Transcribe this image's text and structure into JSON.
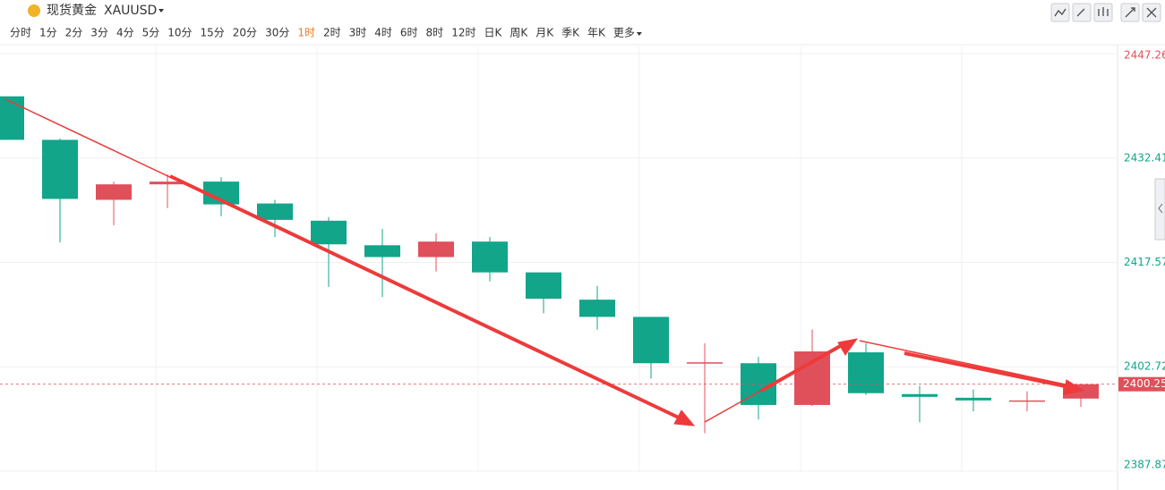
{
  "toolbar": {
    "symbol_name": "现货黄金",
    "symbol": "XAUUSD",
    "intervals": [
      "分时",
      "1分",
      "2分",
      "3分",
      "4分",
      "5分",
      "10分",
      "15分",
      "20分",
      "30分",
      "1时",
      "2时",
      "3时",
      "4时",
      "6时",
      "8时",
      "12时",
      "日K",
      "周K",
      "月K",
      "季K",
      "年K"
    ],
    "more": "更多",
    "active_interval": 10
  },
  "chart_data": {
    "type": "candlestick",
    "up_color": "#e0505a",
    "down_color": "#12a58a",
    "open": [
      2441.19,
      2435.0,
      2426.47,
      2428.67,
      2429.06,
      2425.95,
      2423.5,
      2420.01,
      2418.33,
      2420.53,
      2416.15,
      2412.27,
      2409.82,
      2403.23,
      2403.23,
      2397.29,
      2404.78,
      2398.84,
      2398.32,
      2397.81,
      2398.2
    ],
    "high": [
      2441.19,
      2435.2,
      2429.06,
      2430.09,
      2429.7,
      2426.47,
      2424.02,
      2422.34,
      2421.7,
      2421.17,
      2416.15,
      2414.21,
      2409.82,
      2406.07,
      2404.14,
      2408.01,
      2406.07,
      2400.01,
      2399.49,
      2399.23,
      2400.25
    ],
    "low": [
      2435.0,
      2420.41,
      2422.86,
      2425.31,
      2424.15,
      2421.17,
      2414.08,
      2412.66,
      2416.27,
      2414.86,
      2410.33,
      2408.01,
      2401.03,
      2393.29,
      2395.23,
      2397.16,
      2398.71,
      2394.84,
      2396.39,
      2396.39,
      2397.03
    ],
    "close": [
      2435.0,
      2426.6,
      2428.67,
      2429.06,
      2425.82,
      2423.62,
      2420.14,
      2418.33,
      2420.53,
      2416.15,
      2412.4,
      2409.82,
      2403.23,
      2403.36,
      2397.29,
      2404.91,
      2398.97,
      2398.45,
      2397.94,
      2397.94,
      2400.25
    ],
    "last_price": 2400.25,
    "ylim": [
      2387.87,
      2447.26
    ],
    "yticks": [
      2447.26,
      2432.41,
      2417.57,
      2402.72,
      2387.87
    ],
    "grid": true
  }
}
